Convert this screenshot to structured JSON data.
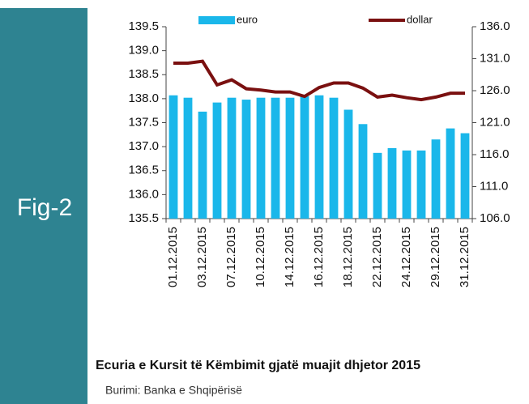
{
  "figure_label": "Fig-2",
  "caption": "Ecuria e Kursit të Këmbimit gjatë muajit dhjetor 2015",
  "source": "Burimi: Banka e Shqipërisë",
  "chart_data": {
    "type": "bar-line",
    "categories": [
      "01.12.2015",
      null,
      "03.12.2015",
      null,
      "07.12.2015",
      null,
      "10.12.2015",
      null,
      "14.12.2015",
      null,
      "16.12.2015",
      null,
      "18.12.2015",
      null,
      "22.12.2015",
      null,
      "24.12.2015",
      null,
      "29.12.2015",
      null,
      "31.12.2015"
    ],
    "series": [
      {
        "name": "euro",
        "type": "bar",
        "color": "#1ab7ea",
        "values": [
          138.07,
          138.02,
          137.73,
          137.92,
          138.02,
          137.98,
          138.02,
          138.02,
          138.02,
          138.05,
          138.07,
          138.02,
          137.77,
          137.47,
          136.87,
          136.97,
          136.92,
          136.92,
          137.15,
          137.38,
          137.28
        ]
      },
      {
        "name": "dollar",
        "type": "line",
        "axis": "y2",
        "color": "#7a1010",
        "values": [
          130.3,
          130.3,
          130.6,
          126.9,
          127.7,
          126.3,
          126.1,
          125.8,
          125.8,
          125.1,
          126.5,
          127.2,
          127.2,
          126.4,
          125.0,
          125.3,
          124.9,
          124.6,
          125.0,
          125.6,
          125.6
        ]
      }
    ],
    "ylim": [
      135.5,
      139.5
    ],
    "yticks": [
      135.5,
      {
        "value": 136,
        "label": "136.0"
      },
      136.5,
      {
        "value": 137,
        "label": "137.0"
      },
      137.5,
      {
        "value": 138,
        "label": "138.0"
      },
      138.5,
      {
        "value": 139,
        "label": "139.0"
      },
      139.5
    ],
    "y2lim": [
      106,
      136
    ],
    "y2ticks": [
      {
        "value": 106,
        "label": "106.0"
      },
      {
        "value": 111,
        "label": "111.0"
      },
      {
        "value": 116,
        "label": "116.0"
      },
      {
        "value": 121,
        "label": "121.0"
      },
      {
        "value": 126,
        "label": "126.0"
      },
      {
        "value": 131,
        "label": "131.0"
      },
      {
        "value": 136,
        "label": "136.0"
      }
    ],
    "legend": "top"
  }
}
